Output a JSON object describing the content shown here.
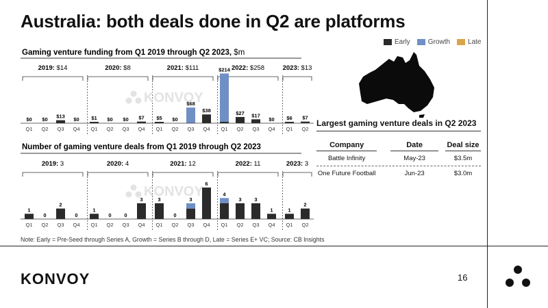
{
  "title": "Australia: both deals done in Q2 are platforms",
  "legend": [
    {
      "label": "Early",
      "color": "#2b2b2b"
    },
    {
      "label": "Growth",
      "color": "#6f8fc5"
    },
    {
      "label": "Late",
      "color": "#d9a54a"
    }
  ],
  "watermark": "KONVOY",
  "chart_data": [
    {
      "type": "bar",
      "stacked": true,
      "title": "Gaming venture funding from Q1 2019 through Q2 2023,",
      "title_unit": "$m",
      "years": [
        {
          "label": "2019:",
          "total": "$14"
        },
        {
          "label": "2020:",
          "total": "$8"
        },
        {
          "label": "2021:",
          "total": "$111"
        },
        {
          "label": "2022:",
          "total": "$258"
        },
        {
          "label": "2023:",
          "total": "$13"
        }
      ],
      "categories": [
        "Q1",
        "Q2",
        "Q3",
        "Q4",
        "Q1",
        "Q2",
        "Q3",
        "Q4",
        "Q1",
        "Q2",
        "Q3",
        "Q4",
        "Q1",
        "Q2",
        "Q3",
        "Q4",
        "Q1",
        "Q2"
      ],
      "labels": [
        "$0",
        "$0",
        "$13",
        "$0",
        "$1",
        "$0",
        "$0",
        "$7",
        "$5",
        "$0",
        "$68",
        "$38",
        "$214",
        "$27",
        "$17",
        "$0",
        "$6",
        "$7"
      ],
      "series": [
        {
          "name": "Early",
          "values": [
            0,
            0,
            13,
            0,
            1,
            0,
            0,
            7,
            5,
            0,
            0,
            38,
            4,
            27,
            17,
            0,
            6,
            7
          ]
        },
        {
          "name": "Growth",
          "values": [
            0,
            0,
            0,
            0,
            0,
            0,
            0,
            0,
            0,
            0,
            68,
            0,
            210,
            0,
            0,
            0,
            0,
            0
          ]
        },
        {
          "name": "Late",
          "values": [
            0,
            0,
            0,
            0,
            0,
            0,
            0,
            0,
            0,
            0,
            0,
            0,
            0,
            0,
            0,
            0,
            0,
            0
          ]
        }
      ],
      "ylim": [
        0,
        214
      ]
    },
    {
      "type": "bar",
      "stacked": true,
      "title": "Number of gaming venture deals from Q1 2019 through Q2 2023",
      "years": [
        {
          "label": "2019:",
          "total": "3"
        },
        {
          "label": "2020:",
          "total": "4"
        },
        {
          "label": "2021:",
          "total": "12"
        },
        {
          "label": "2022:",
          "total": "11"
        },
        {
          "label": "2023:",
          "total": "3"
        }
      ],
      "categories": [
        "Q1",
        "Q2",
        "Q3",
        "Q4",
        "Q1",
        "Q2",
        "Q3",
        "Q4",
        "Q1",
        "Q2",
        "Q3",
        "Q4",
        "Q1",
        "Q2",
        "Q3",
        "Q4",
        "Q1",
        "Q2"
      ],
      "labels": [
        "1",
        "0",
        "2",
        "0",
        "1",
        "0",
        "0",
        "3",
        "3",
        "0",
        "3",
        "6",
        "4",
        "3",
        "3",
        "1",
        "1",
        "2"
      ],
      "series": [
        {
          "name": "Early",
          "values": [
            1,
            0,
            2,
            0,
            1,
            0,
            0,
            3,
            3,
            0,
            2,
            6,
            3,
            3,
            3,
            1,
            1,
            2
          ]
        },
        {
          "name": "Growth",
          "values": [
            0,
            0,
            0,
            0,
            0,
            0,
            0,
            0,
            0,
            0,
            1,
            0,
            1,
            0,
            0,
            0,
            0,
            0
          ]
        },
        {
          "name": "Late",
          "values": [
            0,
            0,
            0,
            0,
            0,
            0,
            0,
            0,
            0,
            0,
            0,
            0,
            0,
            0,
            0,
            0,
            0,
            0
          ]
        }
      ],
      "ylim": [
        0,
        6
      ]
    }
  ],
  "deals_table": {
    "title": "Largest gaming venture deals in Q2 2023",
    "headers": {
      "company": "Company",
      "date": "Date",
      "size": "Deal size"
    },
    "rows": [
      {
        "company": "Battle Infinity",
        "date": "May-23",
        "size": "$3.5m"
      },
      {
        "company": "One Future Football",
        "date": "Jun-23",
        "size": "$3.0m"
      }
    ]
  },
  "note": "Note: Early = Pre-Seed through Series A, Growth = Series B through D, Late = Series E+ VC; Source: CB Insights",
  "footer": {
    "logo": "KONVOY",
    "page": "16"
  }
}
